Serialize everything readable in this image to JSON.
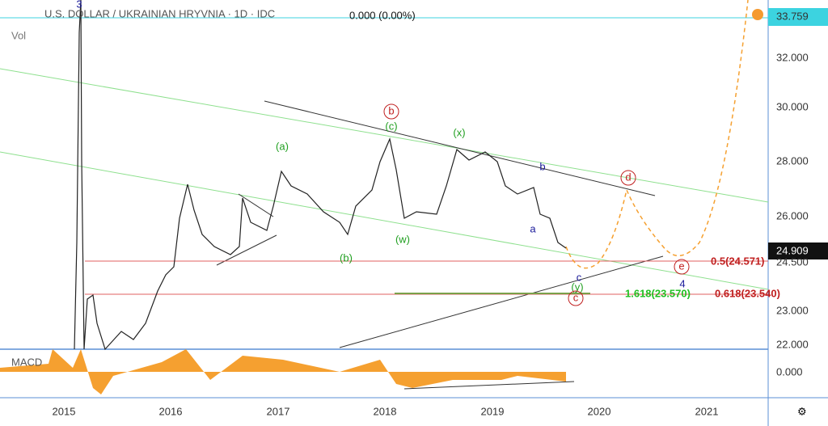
{
  "header": {
    "title": "U.S. DOLLAR / UKRAINIAN HRYVNIA · 1D · IDC",
    "change": "0.000 (0.00%)",
    "volume": "Vol",
    "macd": "MACD"
  },
  "price_axis": [
    "33.759",
    "32.000",
    "30.000",
    "28.000",
    "26.000",
    "24.909",
    "24.500",
    "23.000",
    "22.000"
  ],
  "macd_axis": [
    "0.000"
  ],
  "time_axis": [
    "2015",
    "2016",
    "2017",
    "2018",
    "2019",
    "2020",
    "2021"
  ],
  "annotations": [
    "3",
    "(a)",
    "(b)",
    "(c)",
    "b",
    "(x)",
    "(w)",
    "b",
    "a",
    "c",
    "(y)",
    "c",
    "d",
    "e",
    "4",
    "0.5(24.571)",
    "1.618(23.570)",
    "0.618(23.540)"
  ]
}
